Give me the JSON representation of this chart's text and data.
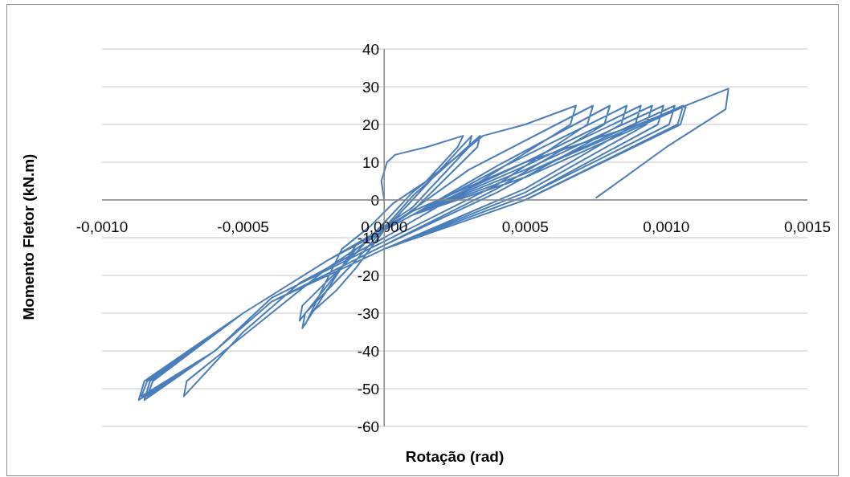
{
  "chart_data": {
    "type": "line",
    "xlabel": "Rotação (rad)",
    "ylabel": "Momento Fletor (kN.m)",
    "xlim": [
      -0.001,
      0.0015
    ],
    "ylim": [
      -60,
      40
    ],
    "xticks": [
      {
        "value": -0.001,
        "label": "-0,0010"
      },
      {
        "value": -0.0005,
        "label": "-0,0005"
      },
      {
        "value": 0,
        "label": "0,0000"
      },
      {
        "value": 0.0005,
        "label": "0,0005"
      },
      {
        "value": 0.001,
        "label": "0,0010"
      },
      {
        "value": 0.0015,
        "label": "0,0015"
      }
    ],
    "yticks": [
      -60,
      -50,
      -40,
      -30,
      -20,
      -10,
      0,
      10,
      20,
      30,
      40
    ],
    "grid": "y",
    "series": [
      {
        "color": "#4a7ebb",
        "x": [
          0,
          -1e-05,
          1e-05,
          4e-05,
          0.00015,
          0.00028,
          0.00026,
          0.00015,
          3e-05,
          -5e-05,
          -0.00015,
          -0.00028,
          -0.00026,
          -0.00017,
          -0.0001,
          0,
          0.0001,
          0.00031,
          0.0003,
          0.0001,
          -0.0001,
          -0.00029,
          -0.00028,
          -0.0001,
          0.0001,
          0.00034,
          0.00033,
          0.0001,
          -0.0001,
          -0.0003,
          -0.00029,
          -0.0001,
          0.0001,
          0.00035,
          0.0005,
          0.00068,
          0.00066,
          0.0003,
          0,
          -0.0003,
          -0.0005,
          -0.00071,
          -0.0007,
          -0.0004,
          -0.0002,
          0,
          0.0003,
          0.00074,
          0.00072,
          0.0004,
          0,
          -0.0004,
          -0.0006,
          -0.00084,
          -0.00082,
          -0.0005,
          -0.0002,
          0.0001,
          0.0004,
          0.0008,
          0.00078,
          0.0004,
          0,
          -0.0004,
          -0.0006,
          -0.00085,
          -0.00083,
          -0.0005,
          -0.0002,
          0.0001,
          0.0004,
          0.00086,
          0.00084,
          0.0004,
          0,
          -0.0004,
          -0.0006,
          -0.00086,
          -0.00084,
          -0.0005,
          -0.0002,
          0.0001,
          0.0005,
          0.00091,
          0.00089,
          0.0005,
          0,
          -0.0004,
          -0.0006,
          -0.00087,
          -0.00085,
          -0.0005,
          -0.0002,
          0.0001,
          0.0005,
          0.00095,
          0.00093,
          0.0005,
          0,
          -0.0004,
          -0.0006,
          -0.00086,
          -0.00084,
          -0.0005,
          -0.0002,
          0.0001,
          0.0005,
          0.00099,
          0.00097,
          0.0005,
          0,
          -0.0004,
          -0.0006,
          -0.00087,
          -0.00085,
          -0.0005,
          -0.0002,
          0.0001,
          0.0005,
          0.00103,
          0.00101,
          0.0005,
          0,
          -0.0004,
          -0.0006,
          -0.00086,
          -0.00084,
          -0.0005,
          -0.0002,
          0.0001,
          0.0005,
          0.00106,
          0.00104,
          0.0005,
          0,
          -0.0004,
          -0.0006,
          -0.00087,
          -0.00085,
          -0.0005,
          -0.0002,
          0.0001,
          0.0005,
          0.00107,
          0.00105,
          0.0005,
          0,
          -0.0004,
          -0.0006,
          -0.00086,
          -0.00084,
          -0.0005,
          -0.0002,
          0.0001,
          0.0005,
          0.0009,
          0.00122,
          0.00121,
          0.001,
          0.00075
        ],
        "values": [
          0,
          5,
          10,
          12,
          14,
          17,
          14,
          5,
          -1,
          -7,
          -13,
          -33,
          -30,
          -24,
          -18,
          -8,
          0,
          17,
          14,
          -2,
          -12,
          -34,
          -30,
          -16,
          1,
          17,
          14,
          -3,
          -13,
          -32,
          -28,
          -14,
          2,
          17,
          20,
          25,
          20,
          3,
          -10,
          -22,
          -35,
          -52,
          -48,
          -30,
          -18,
          -8,
          8,
          25,
          20,
          4,
          -11,
          -26,
          -40,
          -52,
          -48,
          -30,
          -16,
          -4,
          9,
          25,
          20,
          3,
          -12,
          -27,
          -40,
          -53,
          -48,
          -30,
          -16,
          -4,
          8,
          25,
          20,
          2,
          -12,
          -27,
          -40,
          -52,
          -48,
          -30,
          -16,
          -4,
          10,
          25,
          20,
          3,
          -13,
          -27,
          -40,
          -53,
          -48,
          -30,
          -16,
          -4,
          9,
          25,
          20,
          2,
          -13,
          -27,
          -40,
          -52,
          -48,
          -30,
          -16,
          -4,
          8,
          25,
          20,
          1,
          -13,
          -27,
          -40,
          -53,
          -48,
          -30,
          -16,
          -4,
          7,
          25,
          20,
          1,
          -13,
          -27,
          -40,
          -52,
          -48,
          -30,
          -16,
          -4,
          7,
          25,
          20,
          0,
          -13,
          -27,
          -40,
          -53,
          -48,
          -30,
          -16,
          -4,
          6,
          25,
          20,
          0,
          -13,
          -27,
          -40,
          -52,
          -48,
          -30,
          -16,
          -3,
          10,
          20,
          29.5,
          24,
          14,
          0.5
        ]
      }
    ]
  }
}
